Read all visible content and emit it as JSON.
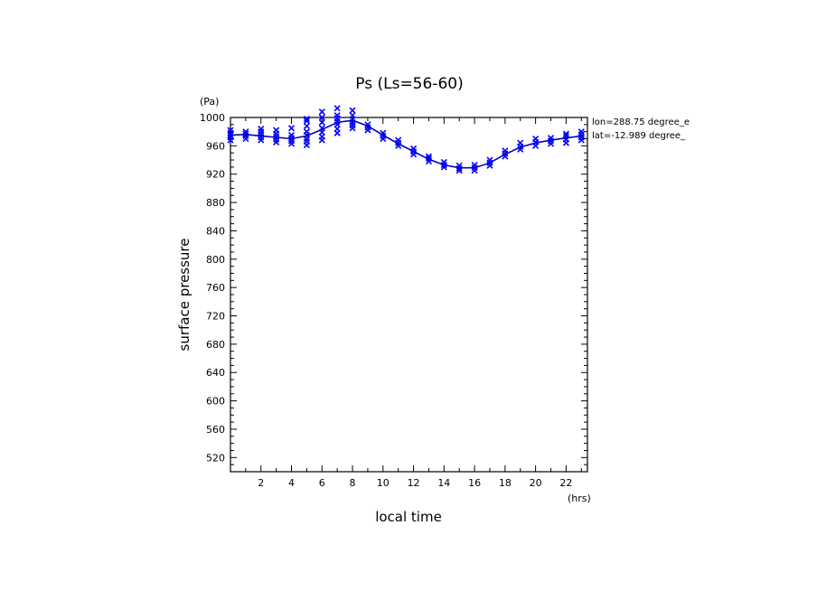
{
  "chart_data": {
    "type": "line",
    "title": "Ps (Ls=56-60)",
    "xlabel": "local time",
    "ylabel": "surface pressure",
    "xunit": "(hrs)",
    "yunit": "(Pa)",
    "annotations": [
      "lon=288.75 degree_e",
      "lat=-12.989 degree_"
    ],
    "xlim": [
      0,
      23.4
    ],
    "ylim": [
      500,
      1000
    ],
    "xticks": [
      "2",
      "4",
      "6",
      "8",
      "10",
      "12",
      "14",
      "16",
      "18",
      "20",
      "22"
    ],
    "yticks": [
      "520",
      "560",
      "600",
      "640",
      "680",
      "720",
      "760",
      "800",
      "840",
      "880",
      "920",
      "960",
      "1000"
    ],
    "grid": false,
    "line_color": "#0000cc",
    "marker_color": "#0000ff",
    "series": [
      {
        "type": "line",
        "x": [
          0,
          1,
          2,
          3,
          4,
          5,
          6,
          7,
          8,
          9,
          10,
          11,
          12,
          13,
          14,
          15,
          16,
          17,
          18,
          19,
          20,
          21,
          22,
          23
        ],
        "values": [
          975,
          976,
          974,
          972,
          970,
          974,
          983,
          993,
          996,
          988,
          975,
          963,
          952,
          941,
          933,
          929,
          929,
          936,
          948,
          958,
          964,
          968,
          971,
          974
        ]
      },
      {
        "type": "scatter",
        "points": [
          [
            0,
            968
          ],
          [
            0,
            972
          ],
          [
            0,
            975
          ],
          [
            0,
            978
          ],
          [
            0,
            982
          ],
          [
            1,
            970
          ],
          [
            1,
            974
          ],
          [
            1,
            977
          ],
          [
            1,
            980
          ],
          [
            2,
            968
          ],
          [
            2,
            972
          ],
          [
            2,
            976
          ],
          [
            2,
            980
          ],
          [
            2,
            984
          ],
          [
            3,
            965
          ],
          [
            3,
            969
          ],
          [
            3,
            973
          ],
          [
            3,
            977
          ],
          [
            3,
            982
          ],
          [
            4,
            963
          ],
          [
            4,
            967
          ],
          [
            4,
            971
          ],
          [
            4,
            975
          ],
          [
            4,
            985
          ],
          [
            5,
            961
          ],
          [
            5,
            966
          ],
          [
            5,
            970
          ],
          [
            5,
            975
          ],
          [
            5,
            980
          ],
          [
            5,
            988
          ],
          [
            5,
            995
          ],
          [
            5,
            998
          ],
          [
            6,
            968
          ],
          [
            6,
            973
          ],
          [
            6,
            979
          ],
          [
            6,
            985
          ],
          [
            6,
            993
          ],
          [
            6,
            1000
          ],
          [
            6,
            1008
          ],
          [
            7,
            978
          ],
          [
            7,
            984
          ],
          [
            7,
            990
          ],
          [
            7,
            994
          ],
          [
            7,
            999
          ],
          [
            7,
            1003
          ],
          [
            7,
            1013
          ],
          [
            8,
            985
          ],
          [
            8,
            989
          ],
          [
            8,
            993
          ],
          [
            8,
            997
          ],
          [
            8,
            1003
          ],
          [
            8,
            1010
          ],
          [
            9,
            982
          ],
          [
            9,
            986
          ],
          [
            9,
            990
          ],
          [
            10,
            970
          ],
          [
            10,
            974
          ],
          [
            10,
            978
          ],
          [
            11,
            960
          ],
          [
            11,
            964
          ],
          [
            11,
            968
          ],
          [
            12,
            948
          ],
          [
            12,
            952
          ],
          [
            12,
            956
          ],
          [
            13,
            938
          ],
          [
            13,
            942
          ],
          [
            13,
            945
          ],
          [
            14,
            930
          ],
          [
            14,
            933
          ],
          [
            14,
            937
          ],
          [
            15,
            925
          ],
          [
            15,
            928
          ],
          [
            15,
            932
          ],
          [
            16,
            925
          ],
          [
            16,
            929
          ],
          [
            16,
            933
          ],
          [
            17,
            932
          ],
          [
            17,
            936
          ],
          [
            17,
            940
          ],
          [
            18,
            945
          ],
          [
            18,
            949
          ],
          [
            18,
            953
          ],
          [
            19,
            955
          ],
          [
            19,
            959
          ],
          [
            19,
            964
          ],
          [
            20,
            960
          ],
          [
            20,
            965
          ],
          [
            20,
            970
          ],
          [
            21,
            963
          ],
          [
            21,
            967
          ],
          [
            21,
            971
          ],
          [
            22,
            964
          ],
          [
            22,
            969
          ],
          [
            22,
            974
          ],
          [
            22,
            977
          ],
          [
            23,
            968
          ],
          [
            23,
            972
          ],
          [
            23,
            976
          ],
          [
            23,
            980
          ]
        ]
      }
    ]
  }
}
